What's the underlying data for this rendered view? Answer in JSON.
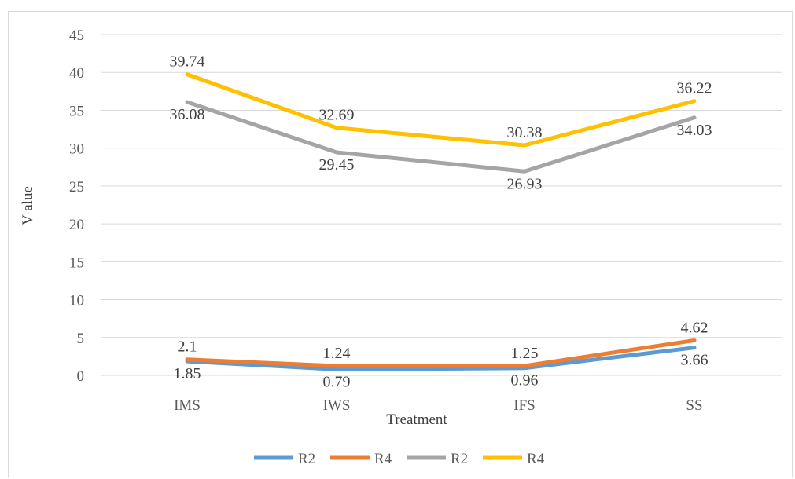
{
  "chart_data": {
    "type": "line",
    "title": "",
    "xlabel": "Treatment",
    "ylabel": "V alue",
    "ylim": [
      0,
      45
    ],
    "yticks": [
      0,
      5,
      10,
      15,
      20,
      25,
      30,
      35,
      40,
      45
    ],
    "grid": true,
    "legend_position": "bottom",
    "categories": [
      "IMS",
      "IWS",
      "IFS",
      "SS"
    ],
    "series": [
      {
        "name": "R2",
        "color": "#5b9bd5",
        "values": [
          1.85,
          0.79,
          0.96,
          3.66
        ],
        "label_pos": "below"
      },
      {
        "name": "R4",
        "color": "#ed7d31",
        "values": [
          2.1,
          1.24,
          1.25,
          4.62
        ],
        "label_pos": "above"
      },
      {
        "name": "R2",
        "color": "#a5a5a5",
        "values": [
          36.08,
          29.45,
          26.93,
          34.03
        ],
        "label_pos": "below"
      },
      {
        "name": "R4",
        "color": "#ffc000",
        "values": [
          39.74,
          32.69,
          30.38,
          36.22
        ],
        "label_pos": "above"
      }
    ],
    "data_labels": [
      [
        "1.85",
        "0.79",
        "0.96",
        "3.66"
      ],
      [
        "2.1",
        "1.24",
        "1.25",
        "4.62"
      ],
      [
        "36.08",
        "29.45",
        "26.93",
        "34.03"
      ],
      [
        "39.74",
        "32.69",
        "30.38",
        "36.22"
      ]
    ]
  }
}
